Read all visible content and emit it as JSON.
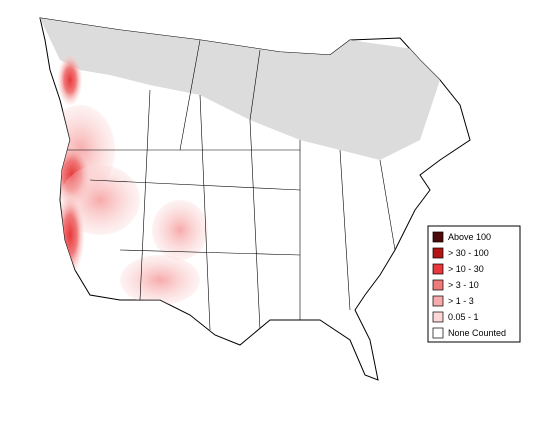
{
  "legend": {
    "items": [
      {
        "label": "Above 100",
        "color": "#4d0a0a"
      },
      {
        "label": "> 30 - 100",
        "color": "#b31515"
      },
      {
        "label": "> 10 - 30",
        "color": "#e8383b"
      },
      {
        "label": "> 3 - 10",
        "color": "#f07a7a"
      },
      {
        "label": "> 1 - 3",
        "color": "#f7aaaa"
      },
      {
        "label": "0.05 - 1",
        "color": "#fbd6d6"
      },
      {
        "label": "None Counted",
        "color": "#ffffff"
      }
    ]
  }
}
